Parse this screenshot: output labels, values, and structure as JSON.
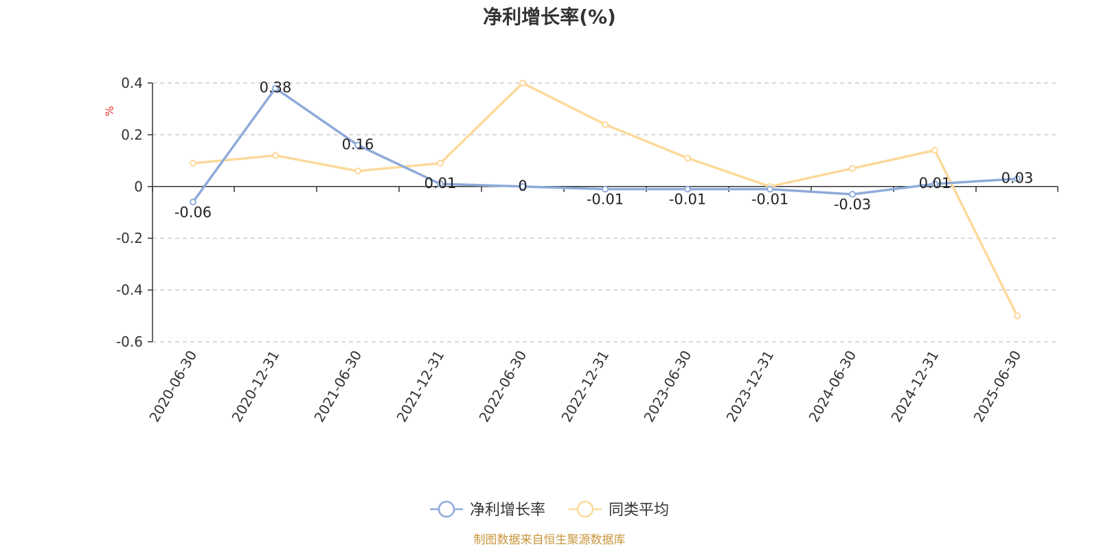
{
  "chart_data": {
    "type": "line",
    "title": "净利增长率(%)",
    "unit_label": "%",
    "categories": [
      "2020-06-30",
      "2020-12-31",
      "2021-06-30",
      "2021-12-31",
      "2022-06-30",
      "2022-12-31",
      "2023-06-30",
      "2023-12-31",
      "2024-06-30",
      "2024-12-31",
      "2025-06-30"
    ],
    "series": [
      {
        "name": "净利增长率",
        "color": "#8eaad9",
        "values": [
          -0.06,
          0.38,
          0.16,
          0.01,
          0,
          -0.01,
          -0.01,
          -0.01,
          -0.03,
          0.01,
          0.03
        ],
        "labels": [
          "-0.06",
          "0.38",
          "0.16",
          "0.01",
          "0",
          "-0.01",
          "-0.01",
          "-0.01",
          "-0.03",
          "0.01",
          "0.03"
        ]
      },
      {
        "name": "同类平均",
        "color": "#fcd99a",
        "values": [
          0.09,
          0.12,
          0.06,
          0.09,
          0.4,
          0.24,
          0.11,
          0.0,
          0.07,
          0.14,
          -0.5
        ]
      }
    ],
    "ylim": [
      -0.6,
      0.4
    ],
    "yticks": [
      0.4,
      0.2,
      0,
      -0.2,
      -0.4,
      -0.6
    ],
    "ytick_labels": [
      "0.4",
      "0.2",
      "0",
      "-0.2",
      "-0.4",
      "-0.6"
    ],
    "grid": true,
    "legend_position": "bottom-center",
    "unit_color": "#e8332e"
  },
  "source": {
    "text": "制图数据来自恒生聚源数据库",
    "color": "#c8963c"
  }
}
